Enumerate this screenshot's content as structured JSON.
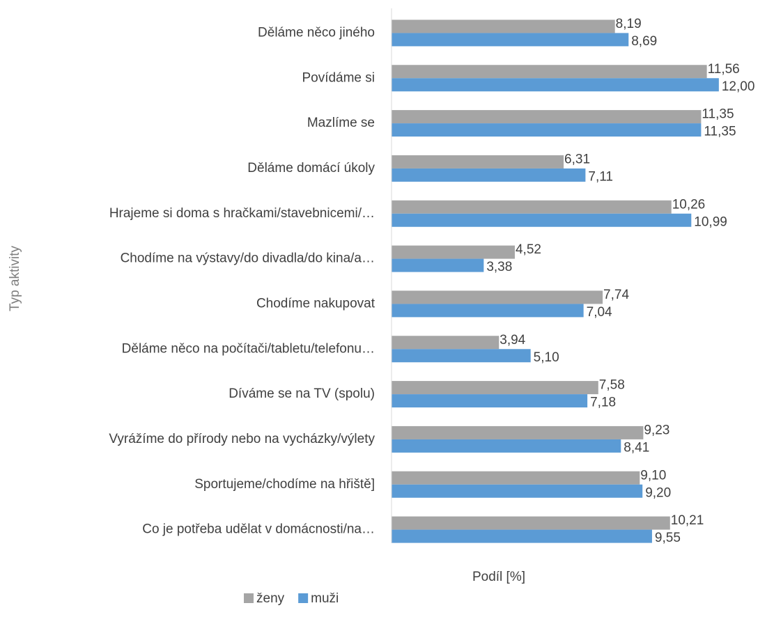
{
  "chart_data": {
    "type": "hbar",
    "x_label": "Podíl [%]",
    "y_label": "Typ aktivity",
    "categories": [
      "Děláme něco jiného",
      "Povídáme si",
      "Mazlíme se",
      "Děláme domácí úkoly",
      "Hrajeme si doma s hračkami/stavebnicemi/…",
      "Chodíme na výstavy/do divadla/do kina/a…",
      "Chodíme nakupovat",
      "Děláme něco na počítači/tabletu/telefonu…",
      "Díváme se na TV (spolu)",
      "Vyrážíme do přírody nebo na vycházky/výlety",
      "Sportujeme/chodíme na hřiště]",
      "Co je potřeba udělat v domácnosti/na…"
    ],
    "series": [
      {
        "name": "ženy",
        "color": "#a5a5a5",
        "values": [
          8.19,
          11.56,
          11.35,
          6.31,
          10.26,
          4.52,
          7.74,
          3.94,
          7.58,
          9.23,
          9.1,
          10.21
        ],
        "value_labels": [
          "8,19",
          "11,56",
          "11,35",
          "6,31",
          "10,26",
          "4,52",
          "7,74",
          "3,94",
          "7,58",
          "9,23",
          "9,10",
          "10,21"
        ]
      },
      {
        "name": "muži",
        "color": "#5b9bd5",
        "values": [
          8.69,
          12.0,
          11.35,
          7.11,
          10.99,
          3.38,
          7.04,
          5.1,
          7.18,
          8.41,
          9.2,
          9.55
        ],
        "value_labels": [
          "8,69",
          "12,00",
          "11,35",
          "7,11",
          "10,99",
          "3,38",
          "7,04",
          "5,10",
          "7,18",
          "8,41",
          "9,20",
          "9,55"
        ]
      }
    ],
    "xlim": [
      0,
      13
    ],
    "legend": "bottom"
  }
}
